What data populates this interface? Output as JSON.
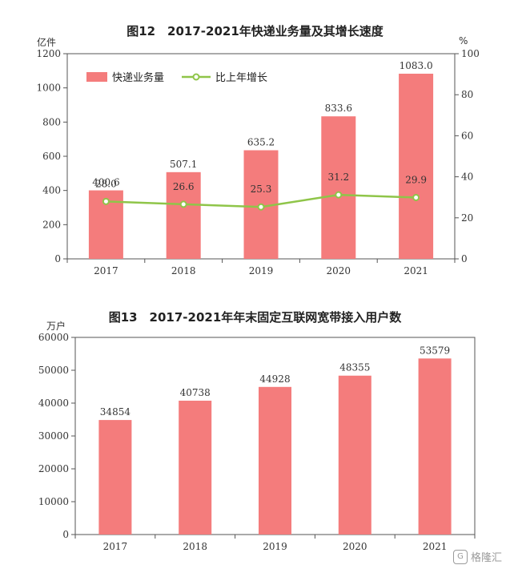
{
  "watermark": {
    "text": "格隆汇",
    "mark": "G"
  },
  "chart_data": [
    {
      "type": "bar",
      "title": "图12　2017-2021年快递业务量及其增长速度",
      "ylabel": "亿件",
      "y2label": "%",
      "categories": [
        "2017",
        "2018",
        "2019",
        "2020",
        "2021"
      ],
      "ylim": [
        0,
        1200
      ],
      "yticks": [
        0,
        200,
        400,
        600,
        800,
        1000,
        1200
      ],
      "y2lim": [
        0,
        100
      ],
      "y2ticks": [
        0,
        20,
        40,
        60,
        80,
        100
      ],
      "grid": false,
      "legend_position": "top-left",
      "series": [
        {
          "name": "快递业务量",
          "type": "bar",
          "axis": "left",
          "color": "#f47c7c",
          "values": [
            400.6,
            507.1,
            635.2,
            833.6,
            1083.0
          ],
          "labels": [
            "400.6",
            "507.1",
            "635.2",
            "833.6",
            "1083.0"
          ]
        },
        {
          "name": "比上年增长",
          "type": "line",
          "axis": "right",
          "color": "#8fc549",
          "values": [
            28.0,
            26.6,
            25.3,
            31.2,
            29.9
          ],
          "labels": [
            "28.0",
            "26.6",
            "25.3",
            "31.2",
            "29.9"
          ]
        }
      ]
    },
    {
      "type": "bar",
      "title": "图13　2017-2021年年末固定互联网宽带接入用户数",
      "ylabel": "万户",
      "categories": [
        "2017",
        "2018",
        "2019",
        "2020",
        "2021"
      ],
      "ylim": [
        0,
        60000
      ],
      "yticks": [
        0,
        10000,
        20000,
        30000,
        40000,
        50000,
        60000
      ],
      "grid": false,
      "series": [
        {
          "type": "bar",
          "axis": "left",
          "color": "#f47c7c",
          "values": [
            34854,
            40738,
            44928,
            48355,
            53579
          ],
          "labels": [
            "34854",
            "40738",
            "44928",
            "48355",
            "53579"
          ]
        }
      ]
    }
  ]
}
